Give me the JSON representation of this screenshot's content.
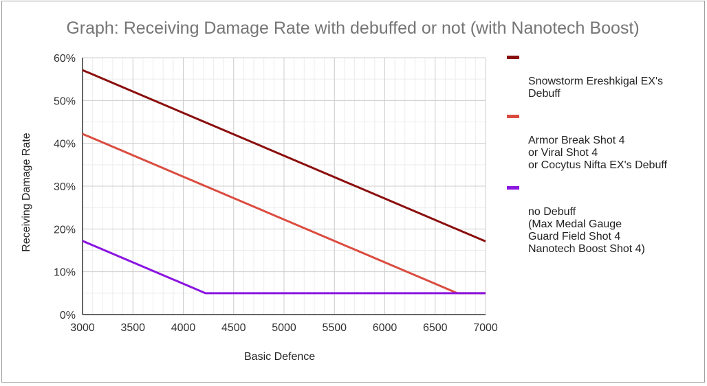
{
  "chart_data": {
    "type": "line",
    "title": "Graph: Receiving Damage Rate with debuffed or not (with Nanotech Boost)",
    "xlabel": "Basic Defence",
    "ylabel": "Receiving Damage Rate",
    "xlim": [
      3000,
      7000
    ],
    "ylim": [
      0,
      60
    ],
    "x_ticks": [
      3000,
      3500,
      4000,
      4500,
      5000,
      5500,
      6000,
      6500,
      7000
    ],
    "x_tick_labels": [
      "3000",
      "3500",
      "4000",
      "4500",
      "5000",
      "5500",
      "6000",
      "6500",
      "7000"
    ],
    "y_ticks": [
      0,
      10,
      20,
      30,
      40,
      50,
      60
    ],
    "y_tick_labels": [
      "0%",
      "10%",
      "20%",
      "30%",
      "40%",
      "50%",
      "60%"
    ],
    "grid": true,
    "legend_position": "right",
    "series": [
      {
        "name": "Snowstorm Ereshkigal EX's\nDebuff",
        "color": "#8b0e0e",
        "points": [
          [
            3000,
            57.1
          ],
          [
            7000,
            17.1
          ]
        ]
      },
      {
        "name": "Armor Break Shot 4\nor Viral Shot 4\nor Cocytus Nifta EX's Debuff",
        "color": "#db4c40",
        "points": [
          [
            3000,
            42.2
          ],
          [
            6720,
            5
          ],
          [
            7000,
            5
          ]
        ]
      },
      {
        "name": "no Debuff\n(Max Medal Gauge\nGuard Field Shot 4\nNanotech Boost Shot 4)",
        "color": "#8a14e0",
        "points": [
          [
            3000,
            17.2
          ],
          [
            4220,
            5
          ],
          [
            7000,
            5
          ]
        ]
      }
    ]
  }
}
